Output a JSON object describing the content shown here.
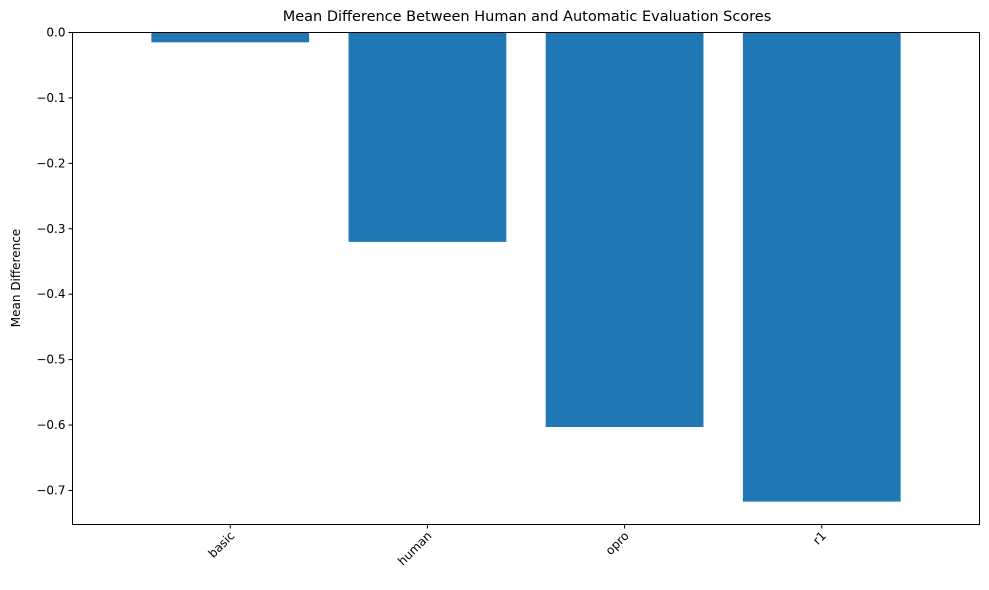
{
  "chart_data": {
    "type": "bar",
    "title": "Mean Difference Between Human and Automatic Evaluation Scores",
    "xlabel": "",
    "ylabel": "Mean Difference",
    "categories": [
      "basic",
      "human",
      "opro",
      "r1"
    ],
    "values": [
      -0.015,
      -0.32,
      -0.603,
      -0.717
    ],
    "ylim": [
      -0.752,
      0.0
    ],
    "yticks": [
      0.0,
      -0.1,
      -0.2,
      -0.3,
      -0.4,
      -0.5,
      -0.6,
      -0.7
    ],
    "ytick_labels": [
      "0.0",
      "−0.1",
      "−0.2",
      "−0.3",
      "−0.4",
      "−0.5",
      "−0.6",
      "−0.7"
    ],
    "xtick_rotation": 45,
    "bar_color": "#1f77b4",
    "grid": false,
    "legend": "none"
  }
}
